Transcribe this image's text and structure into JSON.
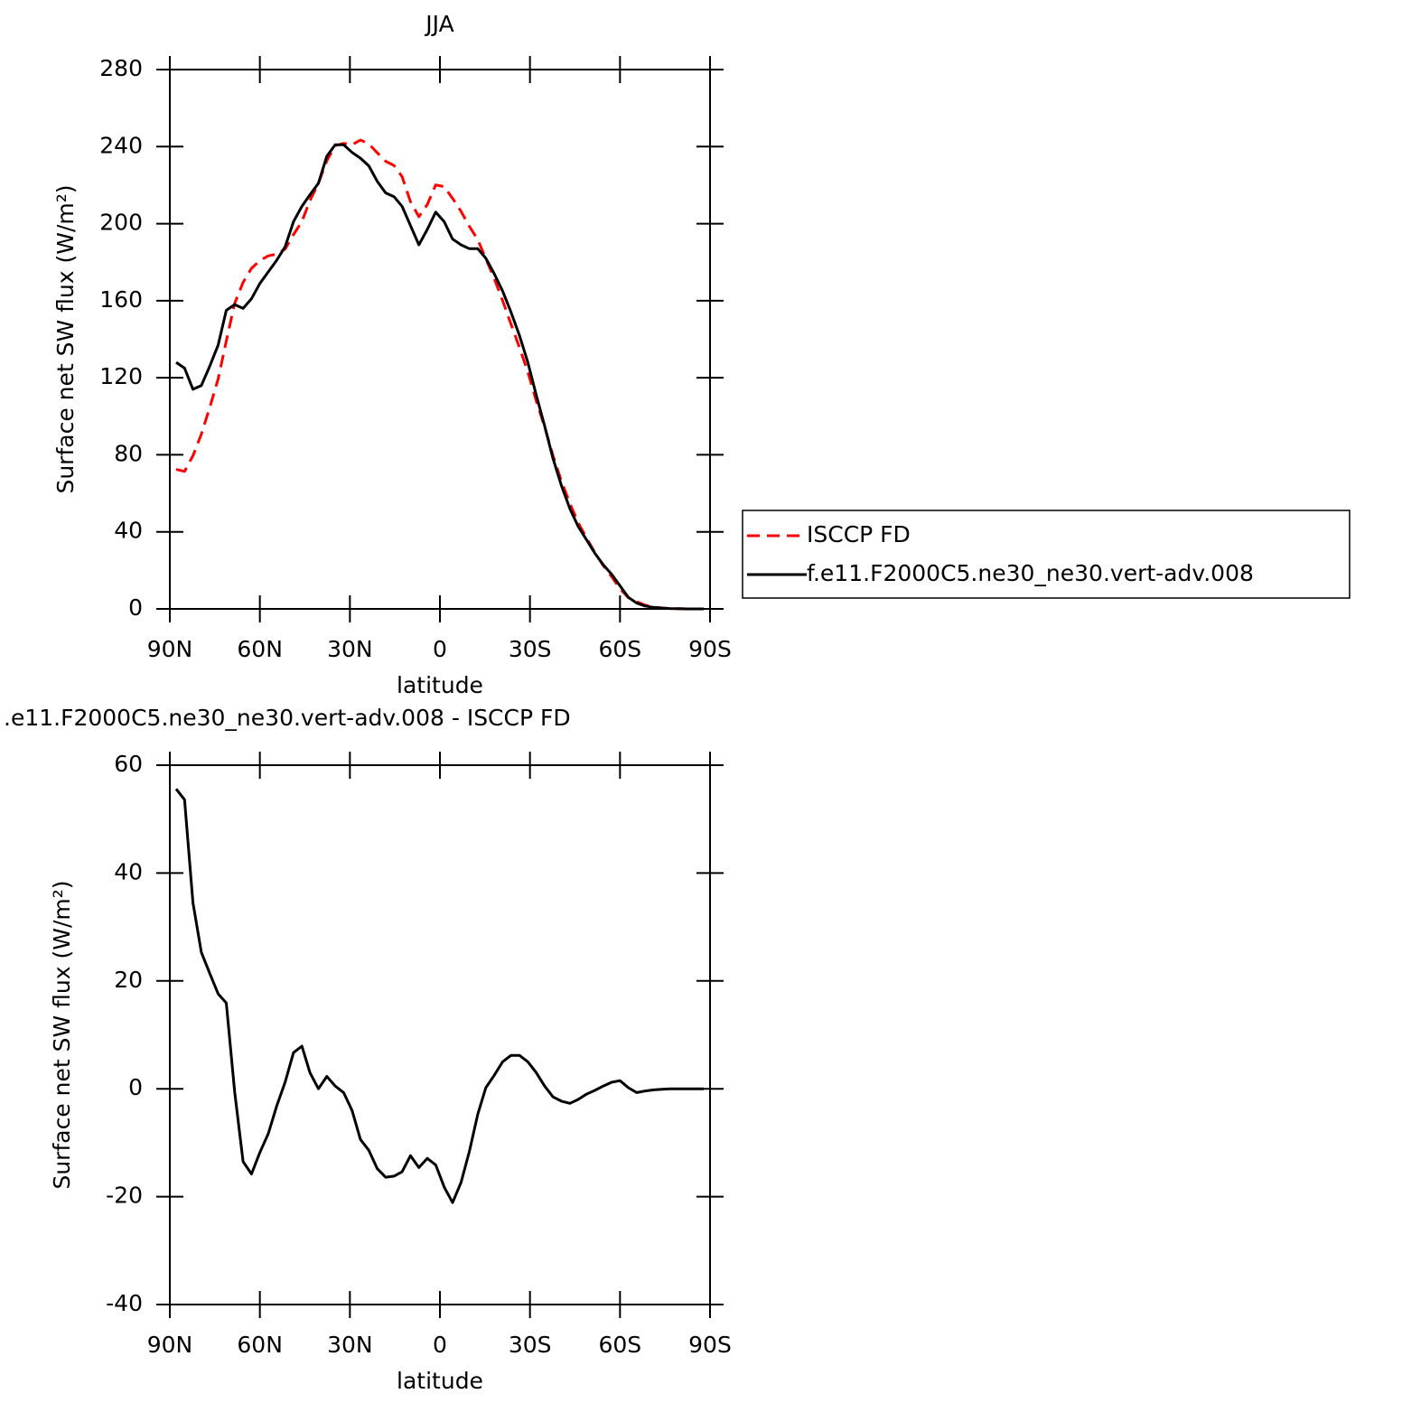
{
  "chart_data": [
    {
      "type": "line",
      "title": "JJA",
      "xlabel": "latitude",
      "ylabel": "Surface net SW flux (W/m²)",
      "x": [
        87.9,
        85.1,
        82.3,
        79.5,
        76.7,
        73.9,
        71.2,
        68.4,
        65.6,
        62.8,
        60.0,
        57.2,
        54.4,
        51.6,
        48.8,
        46.0,
        43.3,
        40.5,
        37.7,
        34.9,
        32.1,
        29.3,
        26.5,
        23.7,
        20.9,
        18.1,
        15.3,
        12.6,
        9.8,
        7.0,
        4.2,
        1.4,
        -1.4,
        -4.2,
        -7.0,
        -9.8,
        -12.6,
        -15.3,
        -18.1,
        -20.9,
        -23.7,
        -26.5,
        -29.3,
        -32.1,
        -34.9,
        -37.7,
        -40.5,
        -43.3,
        -46.0,
        -48.8,
        -51.6,
        -54.4,
        -57.2,
        -60.0,
        -62.8,
        -65.6,
        -68.4,
        -71.2,
        -73.9,
        -76.7,
        -79.5,
        -82.3,
        -85.1,
        -87.9
      ],
      "xlim": [
        90,
        -90
      ],
      "xticks": [
        {
          "value": 90,
          "label": "90N"
        },
        {
          "value": 60,
          "label": "60N"
        },
        {
          "value": 30,
          "label": "30N"
        },
        0,
        {
          "value": -30,
          "label": "30S"
        },
        {
          "value": -60,
          "label": "60S"
        },
        {
          "value": -90,
          "label": "90S"
        }
      ],
      "ylim": [
        0,
        280
      ],
      "yticks": [
        0,
        40,
        80,
        120,
        160,
        200,
        240,
        280
      ],
      "legend": "right",
      "series": [
        {
          "name": "ISCCP FD",
          "color": "#ff0000",
          "dashed": true,
          "values": [
            72.4,
            71.4,
            79.5,
            90.7,
            104.6,
            119.4,
            139.1,
            158.6,
            169.5,
            176.8,
            180.8,
            183.3,
            184.2,
            186.8,
            194.3,
            201.1,
            212,
            221,
            232.7,
            240.5,
            241.7,
            241,
            243.4,
            241.4,
            236.8,
            232.4,
            230.2,
            224.4,
            211.4,
            203.6,
            209.9,
            220.1,
            219.2,
            213.1,
            206.4,
            198.6,
            191.7,
            181.8,
            171.5,
            160,
            147.8,
            135.8,
            123,
            108,
            94.5,
            79.5,
            66.3,
            54.7,
            45,
            37,
            29.3,
            22.5,
            16.8,
            10.5,
            5.8,
            3.7,
            1.9,
            1.0,
            0.5,
            0.2,
            0.1,
            0,
            0,
            0
          ]
        },
        {
          "name": "f.e11.F2000C5.ne30_ne30.vert-adv.008",
          "color": "#000000",
          "dashed": false,
          "values": [
            128,
            125,
            114,
            116,
            126,
            137,
            155,
            158,
            156,
            161,
            169,
            175,
            181,
            188,
            201,
            209,
            215,
            221,
            235,
            241,
            241,
            237,
            234,
            230,
            222,
            216,
            214,
            209,
            199,
            189,
            197,
            206,
            201,
            192,
            189,
            187,
            187,
            182,
            174,
            165,
            154,
            142,
            128,
            111,
            95,
            78,
            64,
            52,
            43,
            36,
            29,
            23,
            18,
            12,
            6,
            3,
            1.5,
            0.8,
            0.4,
            0.2,
            0.1,
            0,
            0,
            0
          ]
        }
      ]
    },
    {
      "type": "line",
      "title": ".e11.F2000C5.ne30_ne30.vert-adv.008 - ISCCP FD",
      "xlabel": "latitude",
      "ylabel": "Surface net SW flux (W/m²)",
      "x": [
        87.9,
        85.1,
        82.3,
        79.5,
        76.7,
        73.9,
        71.2,
        68.4,
        65.6,
        62.8,
        60.0,
        57.2,
        54.4,
        51.6,
        48.8,
        46.0,
        43.3,
        40.5,
        37.7,
        34.9,
        32.1,
        29.3,
        26.5,
        23.7,
        20.9,
        18.1,
        15.3,
        12.6,
        9.8,
        7.0,
        4.2,
        1.4,
        -1.4,
        -4.2,
        -7.0,
        -9.8,
        -12.6,
        -15.3,
        -18.1,
        -20.9,
        -23.7,
        -26.5,
        -29.3,
        -32.1,
        -34.9,
        -37.7,
        -40.5,
        -43.3,
        -46.0,
        -48.8,
        -51.6,
        -54.4,
        -57.2,
        -60.0,
        -62.8,
        -65.6,
        -68.4,
        -71.2,
        -73.9,
        -76.7,
        -79.5,
        -82.3,
        -85.1,
        -87.9
      ],
      "xlim": [
        90,
        -90
      ],
      "xticks": [
        {
          "value": 90,
          "label": "90N"
        },
        {
          "value": 60,
          "label": "60N"
        },
        {
          "value": 30,
          "label": "30N"
        },
        0,
        {
          "value": -30,
          "label": "30S"
        },
        {
          "value": -60,
          "label": "60S"
        },
        {
          "value": -90,
          "label": "90S"
        }
      ],
      "ylim": [
        -40,
        60
      ],
      "yticks": [
        -40,
        -20,
        0,
        20,
        40,
        60
      ],
      "color": "#000000",
      "values": [
        55.6,
        53.6,
        34.5,
        25.3,
        21.4,
        17.6,
        15.9,
        -0.6,
        -13.5,
        -15.8,
        -11.8,
        -8.3,
        -3.2,
        1.2,
        6.7,
        7.9,
        3.0,
        0,
        2.3,
        0.5,
        -0.7,
        -4,
        -9.4,
        -11.4,
        -14.8,
        -16.4,
        -16.2,
        -15.4,
        -12.4,
        -14.6,
        -12.9,
        -14.1,
        -18.2,
        -21.1,
        -17.4,
        -11.6,
        -4.7,
        0.2,
        2.5,
        5.0,
        6.2,
        6.2,
        5.0,
        3.0,
        0.5,
        -1.5,
        -2.3,
        -2.7,
        -2.0,
        -1.0,
        -0.3,
        0.5,
        1.2,
        1.5,
        0.2,
        -0.7,
        -0.4,
        -0.2,
        -0.1,
        0,
        0,
        0,
        0,
        0
      ]
    }
  ]
}
